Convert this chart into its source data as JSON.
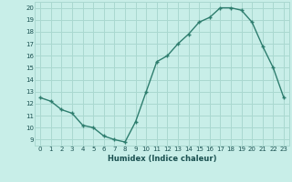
{
  "x": [
    0,
    1,
    2,
    3,
    4,
    5,
    6,
    7,
    8,
    9,
    10,
    11,
    12,
    13,
    14,
    15,
    16,
    17,
    18,
    19,
    20,
    21,
    22,
    23
  ],
  "y": [
    12.5,
    12.2,
    11.5,
    11.2,
    10.2,
    10.0,
    9.3,
    9.0,
    8.8,
    10.5,
    13.0,
    15.5,
    16.0,
    17.0,
    17.8,
    18.8,
    19.2,
    20.0,
    20.0,
    19.8,
    18.8,
    16.8,
    15.0,
    12.5
  ],
  "xlabel": "Humidex (Indice chaleur)",
  "xlim": [
    -0.5,
    23.5
  ],
  "ylim": [
    8.5,
    20.5
  ],
  "yticks": [
    9,
    10,
    11,
    12,
    13,
    14,
    15,
    16,
    17,
    18,
    19,
    20
  ],
  "xticks": [
    0,
    1,
    2,
    3,
    4,
    5,
    6,
    7,
    8,
    9,
    10,
    11,
    12,
    13,
    14,
    15,
    16,
    17,
    18,
    19,
    20,
    21,
    22,
    23
  ],
  "line_color": "#2e7d6e",
  "marker_color": "#2e7d6e",
  "bg_color": "#c8eee8",
  "grid_color": "#aad8d0",
  "label_color": "#1a5050",
  "tick_color": "#1a5050"
}
